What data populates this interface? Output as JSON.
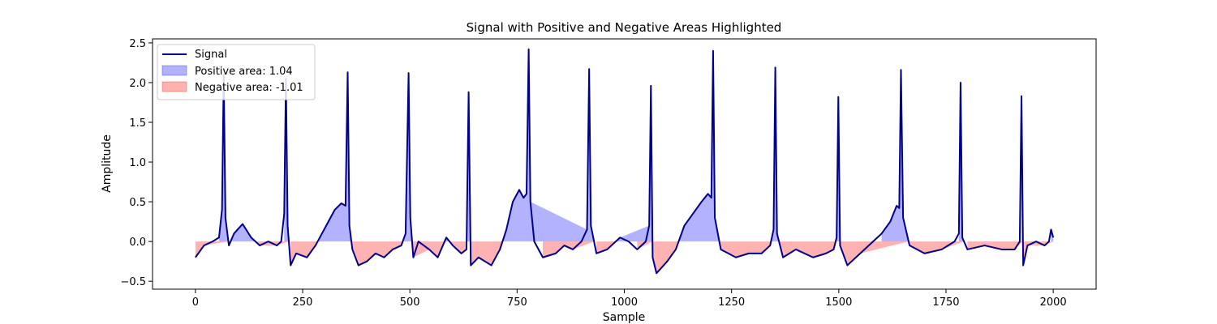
{
  "chart_data": {
    "type": "area",
    "title": "Signal with Positive and Negative Areas Highlighted",
    "xlabel": "Sample",
    "ylabel": "Amplitude",
    "xlim": [
      -100,
      2100
    ],
    "ylim": [
      -0.6,
      2.55
    ],
    "x_ticks": [
      0,
      250,
      500,
      750,
      1000,
      1250,
      1500,
      1750,
      2000
    ],
    "y_ticks": [
      -0.5,
      0.0,
      0.5,
      1.0,
      1.5,
      2.0,
      2.5
    ],
    "x_tick_labels": [
      "0",
      "250",
      "500",
      "750",
      "1000",
      "1250",
      "1500",
      "1750",
      "2000"
    ],
    "y_tick_labels": [
      "−0.5",
      "0.0",
      "0.5",
      "1.0",
      "1.5",
      "2.0",
      "2.5"
    ],
    "legend_position": "upper-left",
    "legend": [
      {
        "label": "Signal",
        "kind": "line",
        "color": "#00008b"
      },
      {
        "label": "Positive area: 1.04",
        "kind": "patch",
        "color": "#0000ff"
      },
      {
        "label": "Negative area: -1.01",
        "kind": "patch",
        "color": "#ff0000"
      }
    ],
    "colors": {
      "signal": "#00008b",
      "positive_fill": "#0000ff",
      "negative_fill": "#ff0000"
    },
    "fill_opacity": 0.3,
    "series": [
      {
        "name": "Signal",
        "x": [
          0,
          20,
          40,
          55,
          62,
          66,
          70,
          78,
          90,
          110,
          130,
          150,
          170,
          190,
          200,
          207,
          211,
          215,
          222,
          235,
          260,
          280,
          295,
          310,
          325,
          340,
          350,
          355,
          359,
          366,
          380,
          400,
          420,
          440,
          460,
          480,
          490,
          497,
          501,
          508,
          520,
          545,
          565,
          585,
          600,
          620,
          632,
          637,
          642,
          660,
          690,
          710,
          725,
          740,
          755,
          765,
          772,
          777,
          781,
          790,
          810,
          840,
          860,
          880,
          900,
          913,
          918,
          922,
          935,
          960,
          990,
          1010,
          1030,
          1050,
          1058,
          1062,
          1066,
          1075,
          1100,
          1120,
          1140,
          1160,
          1180,
          1195,
          1203,
          1207,
          1211,
          1225,
          1260,
          1290,
          1320,
          1340,
          1348,
          1352,
          1356,
          1370,
          1400,
          1440,
          1470,
          1488,
          1495,
          1499,
          1503,
          1520,
          1550,
          1580,
          1600,
          1620,
          1635,
          1641,
          1645,
          1650,
          1665,
          1700,
          1740,
          1770,
          1780,
          1784,
          1788,
          1800,
          1840,
          1880,
          1910,
          1922,
          1926,
          1930,
          1940,
          1960,
          1980,
          1990,
          1995,
          2000
        ],
        "y": [
          -0.2,
          -0.05,
          0.0,
          0.05,
          0.4,
          2.1,
          0.3,
          -0.05,
          0.1,
          0.22,
          0.05,
          -0.05,
          0.0,
          -0.05,
          0.0,
          0.35,
          2.05,
          0.2,
          -0.3,
          -0.15,
          -0.2,
          -0.05,
          0.1,
          0.25,
          0.4,
          0.48,
          0.45,
          2.13,
          0.2,
          -0.1,
          -0.3,
          -0.25,
          -0.15,
          -0.2,
          -0.1,
          -0.05,
          0.1,
          2.12,
          0.3,
          -0.2,
          0.0,
          -0.1,
          -0.2,
          0.05,
          -0.05,
          -0.15,
          -0.1,
          1.88,
          -0.3,
          -0.2,
          -0.3,
          -0.1,
          0.15,
          0.5,
          0.65,
          0.55,
          0.6,
          2.42,
          0.5,
          0.0,
          -0.2,
          -0.15,
          -0.05,
          -0.1,
          0.0,
          0.15,
          2.17,
          0.2,
          -0.15,
          -0.1,
          0.05,
          0.0,
          -0.1,
          0.0,
          0.2,
          1.96,
          -0.2,
          -0.4,
          -0.25,
          -0.1,
          0.2,
          0.35,
          0.5,
          0.6,
          0.55,
          2.4,
          0.3,
          -0.1,
          -0.2,
          -0.15,
          -0.15,
          -0.05,
          0.15,
          2.19,
          0.1,
          -0.2,
          -0.1,
          -0.2,
          -0.15,
          -0.1,
          0.05,
          1.82,
          -0.05,
          -0.3,
          -0.15,
          0.0,
          0.1,
          0.25,
          0.45,
          0.42,
          2.16,
          0.3,
          -0.05,
          -0.15,
          -0.1,
          0.0,
          0.1,
          2.0,
          0.05,
          -0.1,
          -0.05,
          -0.1,
          -0.1,
          0.0,
          1.83,
          -0.3,
          -0.05,
          0.0,
          -0.05,
          0.0,
          0.15,
          0.05
        ]
      }
    ]
  }
}
